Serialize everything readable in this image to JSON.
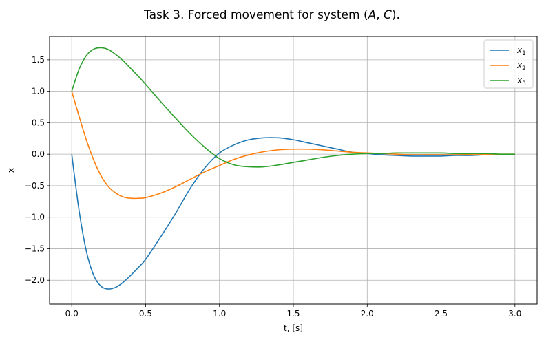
{
  "chart_data": {
    "type": "line",
    "title": "Task 3. Forced movement for system (A, C).",
    "title_parts": [
      "Task 3. Forced movement for system (",
      "A",
      ", ",
      "C",
      ")."
    ],
    "xlabel": "t, [s]",
    "ylabel": "x",
    "xlim": [
      -0.15,
      3.15
    ],
    "ylim": [
      -2.38,
      1.87
    ],
    "grid": true,
    "legend_position": "top-right",
    "x_ticks": [
      0.0,
      0.5,
      1.0,
      1.5,
      2.0,
      2.5,
      3.0
    ],
    "x_tick_labels": [
      "0.0",
      "0.5",
      "1.0",
      "1.5",
      "2.0",
      "2.5",
      "3.0"
    ],
    "y_ticks": [
      1.5,
      1.0,
      0.5,
      0.0,
      -0.5,
      -1.0,
      -1.5,
      -2.0
    ],
    "y_tick_labels": [
      "1.5",
      "1.0",
      "0.5",
      "0.0",
      "−0.5",
      "−1.0",
      "−1.5",
      "−2.0"
    ],
    "x": [
      0,
      0.05,
      0.1,
      0.15,
      0.2,
      0.25,
      0.3,
      0.35,
      0.4,
      0.45,
      0.5,
      0.6,
      0.7,
      0.8,
      0.9,
      1.0,
      1.1,
      1.2,
      1.3,
      1.4,
      1.5,
      1.6,
      1.7,
      1.8,
      1.9,
      2.0,
      2.1,
      2.2,
      2.3,
      2.4,
      2.5,
      2.6,
      2.7,
      2.8,
      2.9,
      3.0
    ],
    "series": [
      {
        "name": "x",
        "subscript": "1",
        "color": "#1f77b4",
        "values": [
          0,
          -0.9,
          -1.55,
          -1.93,
          -2.1,
          -2.14,
          -2.11,
          -2.03,
          -1.92,
          -1.8,
          -1.67,
          -1.32,
          -0.95,
          -0.55,
          -0.22,
          0.02,
          0.15,
          0.23,
          0.26,
          0.26,
          0.23,
          0.18,
          0.13,
          0.08,
          0.03,
          0.01,
          -0.01,
          -0.02,
          -0.03,
          -0.03,
          -0.03,
          -0.02,
          -0.02,
          -0.01,
          -0.01,
          0.0
        ]
      },
      {
        "name": "x",
        "subscript": "2",
        "color": "#ff7f0e",
        "values": [
          1.0,
          0.6,
          0.22,
          -0.1,
          -0.35,
          -0.52,
          -0.62,
          -0.68,
          -0.7,
          -0.7,
          -0.69,
          -0.62,
          -0.52,
          -0.4,
          -0.28,
          -0.18,
          -0.08,
          -0.01,
          0.04,
          0.07,
          0.08,
          0.08,
          0.07,
          0.05,
          0.03,
          0.02,
          0.01,
          0.0,
          -0.01,
          -0.01,
          -0.01,
          -0.01,
          0.0,
          0.0,
          0.0,
          0.0
        ]
      },
      {
        "name": "x",
        "subscript": "3",
        "color": "#2ca02c",
        "values": [
          1.0,
          1.35,
          1.57,
          1.67,
          1.69,
          1.66,
          1.58,
          1.48,
          1.36,
          1.24,
          1.11,
          0.84,
          0.58,
          0.33,
          0.11,
          -0.07,
          -0.17,
          -0.2,
          -0.2,
          -0.17,
          -0.13,
          -0.09,
          -0.05,
          -0.02,
          0.0,
          0.01,
          0.01,
          0.02,
          0.02,
          0.02,
          0.02,
          0.01,
          0.01,
          0.01,
          0.0,
          0.0
        ]
      }
    ]
  }
}
